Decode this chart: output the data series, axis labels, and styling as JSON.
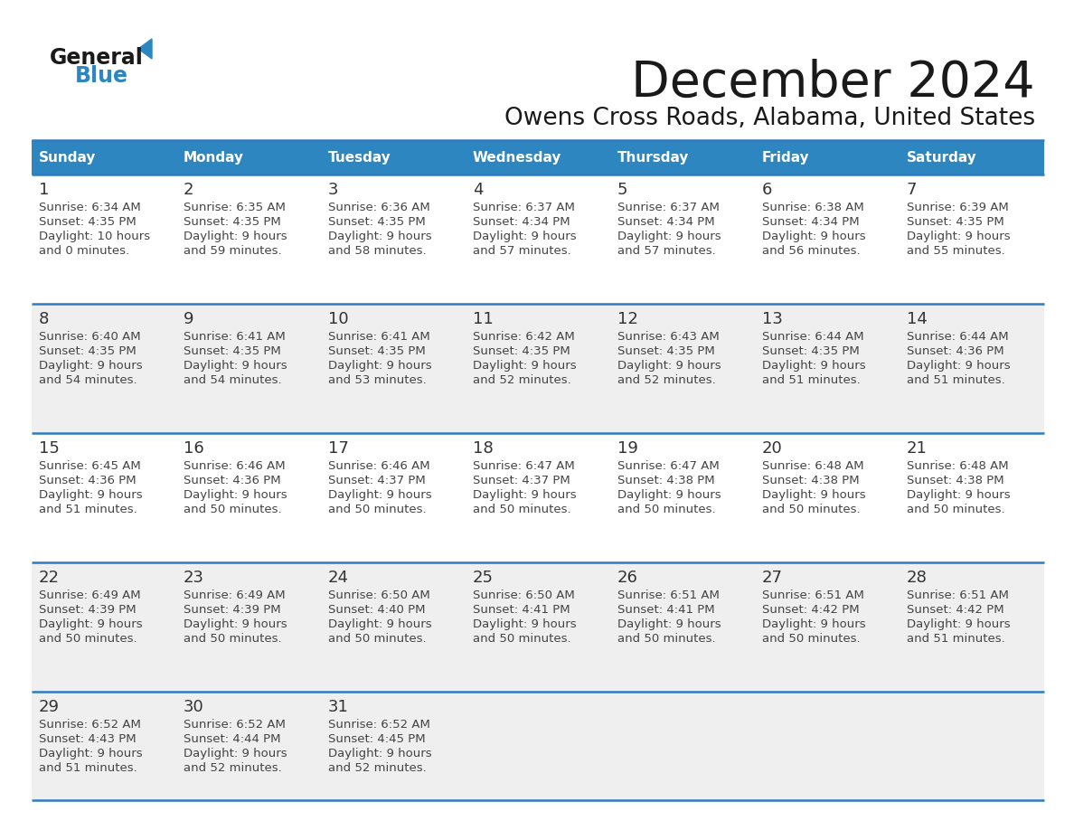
{
  "title": "December 2024",
  "subtitle": "Owens Cross Roads, Alabama, United States",
  "header_bg_color": "#2E86C1",
  "header_text_color": "#FFFFFF",
  "day_names": [
    "Sunday",
    "Monday",
    "Tuesday",
    "Wednesday",
    "Thursday",
    "Friday",
    "Saturday"
  ],
  "row_bg_colors": [
    "#FFFFFF",
    "#EFEFEF",
    "#FFFFFF",
    "#EFEFEF",
    "#EFEFEF"
  ],
  "cell_border_color": "#2E7BBF",
  "date_text_color": "#333333",
  "info_text_color": "#444444",
  "title_color": "#1a1a1a",
  "subtitle_color": "#1a1a1a",
  "logo_general_color": "#1a1a1a",
  "logo_blue_color": "#2E86C1",
  "logo_triangle_color": "#2E86C1",
  "weeks": [
    [
      {
        "day": 1,
        "sunrise": "6:34 AM",
        "sunset": "4:35 PM",
        "dl1": "Daylight: 10 hours",
        "dl2": "and 0 minutes."
      },
      {
        "day": 2,
        "sunrise": "6:35 AM",
        "sunset": "4:35 PM",
        "dl1": "Daylight: 9 hours",
        "dl2": "and 59 minutes."
      },
      {
        "day": 3,
        "sunrise": "6:36 AM",
        "sunset": "4:35 PM",
        "dl1": "Daylight: 9 hours",
        "dl2": "and 58 minutes."
      },
      {
        "day": 4,
        "sunrise": "6:37 AM",
        "sunset": "4:34 PM",
        "dl1": "Daylight: 9 hours",
        "dl2": "and 57 minutes."
      },
      {
        "day": 5,
        "sunrise": "6:37 AM",
        "sunset": "4:34 PM",
        "dl1": "Daylight: 9 hours",
        "dl2": "and 57 minutes."
      },
      {
        "day": 6,
        "sunrise": "6:38 AM",
        "sunset": "4:34 PM",
        "dl1": "Daylight: 9 hours",
        "dl2": "and 56 minutes."
      },
      {
        "day": 7,
        "sunrise": "6:39 AM",
        "sunset": "4:35 PM",
        "dl1": "Daylight: 9 hours",
        "dl2": "and 55 minutes."
      }
    ],
    [
      {
        "day": 8,
        "sunrise": "6:40 AM",
        "sunset": "4:35 PM",
        "dl1": "Daylight: 9 hours",
        "dl2": "and 54 minutes."
      },
      {
        "day": 9,
        "sunrise": "6:41 AM",
        "sunset": "4:35 PM",
        "dl1": "Daylight: 9 hours",
        "dl2": "and 54 minutes."
      },
      {
        "day": 10,
        "sunrise": "6:41 AM",
        "sunset": "4:35 PM",
        "dl1": "Daylight: 9 hours",
        "dl2": "and 53 minutes."
      },
      {
        "day": 11,
        "sunrise": "6:42 AM",
        "sunset": "4:35 PM",
        "dl1": "Daylight: 9 hours",
        "dl2": "and 52 minutes."
      },
      {
        "day": 12,
        "sunrise": "6:43 AM",
        "sunset": "4:35 PM",
        "dl1": "Daylight: 9 hours",
        "dl2": "and 52 minutes."
      },
      {
        "day": 13,
        "sunrise": "6:44 AM",
        "sunset": "4:35 PM",
        "dl1": "Daylight: 9 hours",
        "dl2": "and 51 minutes."
      },
      {
        "day": 14,
        "sunrise": "6:44 AM",
        "sunset": "4:36 PM",
        "dl1": "Daylight: 9 hours",
        "dl2": "and 51 minutes."
      }
    ],
    [
      {
        "day": 15,
        "sunrise": "6:45 AM",
        "sunset": "4:36 PM",
        "dl1": "Daylight: 9 hours",
        "dl2": "and 51 minutes."
      },
      {
        "day": 16,
        "sunrise": "6:46 AM",
        "sunset": "4:36 PM",
        "dl1": "Daylight: 9 hours",
        "dl2": "and 50 minutes."
      },
      {
        "day": 17,
        "sunrise": "6:46 AM",
        "sunset": "4:37 PM",
        "dl1": "Daylight: 9 hours",
        "dl2": "and 50 minutes."
      },
      {
        "day": 18,
        "sunrise": "6:47 AM",
        "sunset": "4:37 PM",
        "dl1": "Daylight: 9 hours",
        "dl2": "and 50 minutes."
      },
      {
        "day": 19,
        "sunrise": "6:47 AM",
        "sunset": "4:38 PM",
        "dl1": "Daylight: 9 hours",
        "dl2": "and 50 minutes."
      },
      {
        "day": 20,
        "sunrise": "6:48 AM",
        "sunset": "4:38 PM",
        "dl1": "Daylight: 9 hours",
        "dl2": "and 50 minutes."
      },
      {
        "day": 21,
        "sunrise": "6:48 AM",
        "sunset": "4:38 PM",
        "dl1": "Daylight: 9 hours",
        "dl2": "and 50 minutes."
      }
    ],
    [
      {
        "day": 22,
        "sunrise": "6:49 AM",
        "sunset": "4:39 PM",
        "dl1": "Daylight: 9 hours",
        "dl2": "and 50 minutes."
      },
      {
        "day": 23,
        "sunrise": "6:49 AM",
        "sunset": "4:39 PM",
        "dl1": "Daylight: 9 hours",
        "dl2": "and 50 minutes."
      },
      {
        "day": 24,
        "sunrise": "6:50 AM",
        "sunset": "4:40 PM",
        "dl1": "Daylight: 9 hours",
        "dl2": "and 50 minutes."
      },
      {
        "day": 25,
        "sunrise": "6:50 AM",
        "sunset": "4:41 PM",
        "dl1": "Daylight: 9 hours",
        "dl2": "and 50 minutes."
      },
      {
        "day": 26,
        "sunrise": "6:51 AM",
        "sunset": "4:41 PM",
        "dl1": "Daylight: 9 hours",
        "dl2": "and 50 minutes."
      },
      {
        "day": 27,
        "sunrise": "6:51 AM",
        "sunset": "4:42 PM",
        "dl1": "Daylight: 9 hours",
        "dl2": "and 50 minutes."
      },
      {
        "day": 28,
        "sunrise": "6:51 AM",
        "sunset": "4:42 PM",
        "dl1": "Daylight: 9 hours",
        "dl2": "and 51 minutes."
      }
    ],
    [
      {
        "day": 29,
        "sunrise": "6:52 AM",
        "sunset": "4:43 PM",
        "dl1": "Daylight: 9 hours",
        "dl2": "and 51 minutes."
      },
      {
        "day": 30,
        "sunrise": "6:52 AM",
        "sunset": "4:44 PM",
        "dl1": "Daylight: 9 hours",
        "dl2": "and 52 minutes."
      },
      {
        "day": 31,
        "sunrise": "6:52 AM",
        "sunset": "4:45 PM",
        "dl1": "Daylight: 9 hours",
        "dl2": "and 52 minutes."
      },
      null,
      null,
      null,
      null
    ]
  ]
}
